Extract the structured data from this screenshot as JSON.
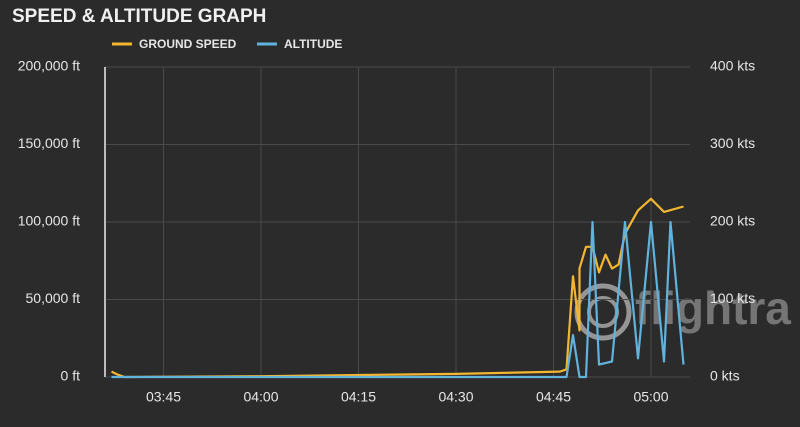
{
  "chart_data": {
    "type": "line",
    "title": "SPEED & ALTITUDE GRAPH",
    "watermark": "flightra",
    "xlim": [
      "03:36",
      "05:06"
    ],
    "xticks": [
      "03:45",
      "04:00",
      "04:15",
      "04:30",
      "04:45",
      "05:00"
    ],
    "ylim": [
      0,
      200000
    ],
    "yticks": [
      {
        "value": 0,
        "label": "0 ft"
      },
      {
        "value": 50000,
        "label": "50,000 ft"
      },
      {
        "value": 100000,
        "label": "100,000 ft"
      },
      {
        "value": 150000,
        "label": "150,000 ft"
      },
      {
        "value": 200000,
        "label": "200,000 ft"
      }
    ],
    "y2lim": [
      0,
      400
    ],
    "y2ticks": [
      {
        "value": 0,
        "label": "0 kts"
      },
      {
        "value": 100,
        "label": "100 kts"
      },
      {
        "value": 200,
        "label": "200 kts"
      },
      {
        "value": 300,
        "label": "300 kts"
      },
      {
        "value": 400,
        "label": "400 kts"
      }
    ],
    "grid": true,
    "series": [
      {
        "name": "GROUND SPEED",
        "color": "#f2b630",
        "axis": "y2",
        "x": [
          "03:37",
          "03:38",
          "03:39",
          "04:00",
          "04:30",
          "04:46",
          "04:47",
          "04:48",
          "04:49",
          "04:49",
          "04:50",
          "04:51",
          "04:52",
          "04:53",
          "04:54",
          "04:55",
          "04:56",
          "04:58",
          "05:00",
          "05:02",
          "05:05"
        ],
        "values": [
          7,
          3,
          0,
          1,
          4,
          7,
          10,
          130,
          60,
          140,
          168,
          168,
          135,
          158,
          140,
          145,
          185,
          215,
          230,
          213,
          220
        ]
      },
      {
        "name": "ALTITUDE",
        "color": "#5fb3dc",
        "x": [
          "03:37",
          "04:47",
          "04:48",
          "04:49",
          "04:50",
          "04:51",
          "04:52",
          "04:54",
          "04:56",
          "04:58",
          "05:00",
          "05:02",
          "05:03",
          "05:05"
        ],
        "values": [
          0,
          0,
          27000,
          0,
          0,
          100000,
          8000,
          10000,
          100000,
          12000,
          100000,
          10000,
          100000,
          8000
        ]
      }
    ]
  }
}
